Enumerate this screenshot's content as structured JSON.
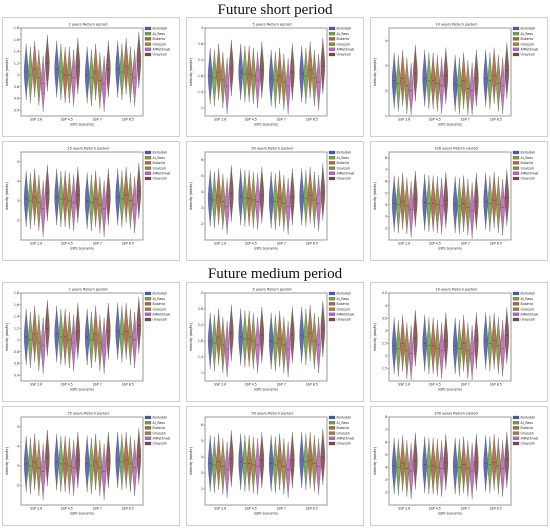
{
  "sections": [
    {
      "title": "Future short period"
    },
    {
      "title": "Future medium period"
    }
  ],
  "chart_defaults": {
    "type": "violin",
    "categories": [
      "SSP 2.6",
      "SSP 4.5",
      "SSP 7",
      "SSP 8.5"
    ],
    "xlabel": "SSPs Scenarios",
    "ylabel": "Intensity (mm/hr)",
    "series_names": [
      "Buriydah",
      "Al_Rass",
      "Bukeria",
      "Unaizah",
      "AlMethnab",
      "Unayzah"
    ],
    "series_colors": [
      "#4e5aa8",
      "#6fa03c",
      "#b06040",
      "#8a8a3a",
      "#c060c0",
      "#7a4a44"
    ]
  },
  "chart_data": [
    {
      "type": "violin",
      "section": 0,
      "title": "2 years Return period",
      "categories": [
        "SSP 2.6",
        "SSP 4.5",
        "SSP 7",
        "SSP 8.5"
      ],
      "xlabel": "SSPs Scenarios",
      "ylabel": "Intensity (mm/hr)",
      "ylim": [
        0.3,
        1.8
      ],
      "yticks": [
        0.4,
        0.6,
        0.8,
        1.0,
        1.2,
        1.4,
        1.6,
        1.8
      ],
      "series": [
        {
          "name": "Buriydah",
          "values": [
            1.05,
            1.1,
            1.0,
            1.1
          ]
        },
        {
          "name": "Al_Rass",
          "values": [
            1.0,
            1.05,
            0.95,
            1.05
          ]
        },
        {
          "name": "Bukeria",
          "values": [
            1.1,
            1.0,
            1.05,
            1.15
          ]
        },
        {
          "name": "Unaizah",
          "values": [
            0.95,
            1.0,
            0.9,
            1.0
          ]
        },
        {
          "name": "AlMethnab",
          "values": [
            0.85,
            0.95,
            0.85,
            0.95
          ]
        },
        {
          "name": "Unayzah",
          "values": [
            1.2,
            1.15,
            1.1,
            1.25
          ]
        }
      ]
    },
    {
      "type": "violin",
      "section": 0,
      "title": "5 years Return period",
      "categories": [
        "SSP 2.6",
        "SSP 4.5",
        "SSP 7",
        "SSP 8.5"
      ],
      "xlabel": "SSPs Scenarios",
      "ylabel": "Intensity (mm/hr)",
      "ylim": [
        0.8,
        3.0
      ],
      "yticks": [
        1.0,
        1.4,
        1.8,
        2.2,
        2.6,
        3.0
      ],
      "series": [
        {
          "name": "Buriydah",
          "values": [
            1.8,
            1.9,
            1.75,
            1.85
          ]
        },
        {
          "name": "Al_Rass",
          "values": [
            1.75,
            1.85,
            1.7,
            1.8
          ]
        },
        {
          "name": "Bukeria",
          "values": [
            1.9,
            1.85,
            1.8,
            1.95
          ]
        },
        {
          "name": "Unaizah",
          "values": [
            1.7,
            1.8,
            1.65,
            1.75
          ]
        },
        {
          "name": "AlMethnab",
          "values": [
            1.55,
            1.7,
            1.55,
            1.65
          ]
        },
        {
          "name": "Unayzah",
          "values": [
            2.0,
            1.95,
            1.9,
            2.05
          ]
        }
      ]
    },
    {
      "type": "violin",
      "section": 0,
      "title": "10 years Return period",
      "categories": [
        "SSP 2.6",
        "SSP 4.5",
        "SSP 7",
        "SSP 8.5"
      ],
      "xlabel": "SSPs Scenarios",
      "ylabel": "Intensity (mm/hr)",
      "ylim": [
        1.0,
        4.5
      ],
      "yticks": [
        1,
        2,
        3,
        4
      ],
      "series": [
        {
          "name": "Buriydah",
          "values": [
            2.4,
            2.5,
            2.3,
            2.5
          ]
        },
        {
          "name": "Al_Rass",
          "values": [
            2.3,
            2.4,
            2.2,
            2.4
          ]
        },
        {
          "name": "Bukeria",
          "values": [
            2.5,
            2.4,
            2.4,
            2.6
          ]
        },
        {
          "name": "Unaizah",
          "values": [
            2.2,
            2.3,
            2.1,
            2.3
          ]
        },
        {
          "name": "AlMethnab",
          "values": [
            2.0,
            2.2,
            2.0,
            2.2
          ]
        },
        {
          "name": "Unayzah",
          "values": [
            2.7,
            2.6,
            2.5,
            2.8
          ]
        }
      ]
    },
    {
      "type": "violin",
      "section": 0,
      "title": "25 years Return period",
      "categories": [
        "SSP 2.6",
        "SSP 4.5",
        "SSP 7",
        "SSP 8.5"
      ],
      "xlabel": "SSPs Scenarios",
      "ylabel": "Intensity (mm/hr)",
      "ylim": [
        1.0,
        5.5
      ],
      "yticks": [
        2,
        3,
        4,
        5
      ],
      "series": [
        {
          "name": "Buriydah",
          "values": [
            3.1,
            3.2,
            3.0,
            3.2
          ]
        },
        {
          "name": "Al_Rass",
          "values": [
            3.0,
            3.1,
            2.9,
            3.1
          ]
        },
        {
          "name": "Bukeria",
          "values": [
            3.2,
            3.1,
            3.1,
            3.3
          ]
        },
        {
          "name": "Unaizah",
          "values": [
            2.9,
            3.0,
            2.8,
            3.0
          ]
        },
        {
          "name": "AlMethnab",
          "values": [
            2.6,
            2.9,
            2.6,
            2.8
          ]
        },
        {
          "name": "Unayzah",
          "values": [
            3.4,
            3.3,
            3.2,
            3.5
          ]
        }
      ]
    },
    {
      "type": "violin",
      "section": 0,
      "title": "50 years Return period",
      "categories": [
        "SSP 2.6",
        "SSP 4.5",
        "SSP 7",
        "SSP 8.5"
      ],
      "xlabel": "SSPs Scenarios",
      "ylabel": "Intensity (mm/hr)",
      "ylim": [
        1.0,
        6.5
      ],
      "yticks": [
        2,
        3,
        4,
        5,
        6
      ],
      "series": [
        {
          "name": "Buriydah",
          "values": [
            3.6,
            3.7,
            3.5,
            3.7
          ]
        },
        {
          "name": "Al_Rass",
          "values": [
            3.5,
            3.6,
            3.4,
            3.6
          ]
        },
        {
          "name": "Bukeria",
          "values": [
            3.7,
            3.6,
            3.6,
            3.8
          ]
        },
        {
          "name": "Unaizah",
          "values": [
            3.4,
            3.5,
            3.3,
            3.5
          ]
        },
        {
          "name": "AlMethnab",
          "values": [
            3.1,
            3.4,
            3.1,
            3.3
          ]
        },
        {
          "name": "Unayzah",
          "values": [
            3.9,
            3.8,
            3.7,
            4.0
          ]
        }
      ]
    },
    {
      "type": "violin",
      "section": 0,
      "title": "100 years Return period",
      "categories": [
        "SSP 2.6",
        "SSP 4.5",
        "SSP 7",
        "SSP 8.5"
      ],
      "xlabel": "SSPs Scenarios",
      "ylabel": "Intensity (mm/hr)",
      "ylim": [
        1.0,
        8.5
      ],
      "yticks": [
        2,
        3,
        4,
        5,
        6,
        7,
        8
      ],
      "series": [
        {
          "name": "Buriydah",
          "values": [
            4.1,
            4.2,
            4.0,
            4.3
          ]
        },
        {
          "name": "Al_Rass",
          "values": [
            4.0,
            4.1,
            3.9,
            4.1
          ]
        },
        {
          "name": "Bukeria",
          "values": [
            4.3,
            4.1,
            4.1,
            4.4
          ]
        },
        {
          "name": "Unaizah",
          "values": [
            3.9,
            4.0,
            3.8,
            4.0
          ]
        },
        {
          "name": "AlMethnab",
          "values": [
            3.6,
            3.9,
            3.5,
            3.8
          ]
        },
        {
          "name": "Unayzah",
          "values": [
            4.5,
            4.4,
            4.3,
            4.6
          ]
        }
      ]
    },
    {
      "type": "violin",
      "section": 1,
      "title": "2 years Return period",
      "categories": [
        "SSP 2.6",
        "SSP 4.5",
        "SSP 7",
        "SSP 8.5"
      ],
      "xlabel": "SSPs Scenarios",
      "ylabel": "Intensity (mm/hr)",
      "ylim": [
        0.3,
        1.8
      ],
      "yticks": [
        0.4,
        0.6,
        0.8,
        1.0,
        1.2,
        1.4,
        1.6,
        1.8
      ],
      "series": [
        {
          "name": "Buriydah",
          "values": [
            1.05,
            1.1,
            1.05,
            1.15
          ]
        },
        {
          "name": "Al_Rass",
          "values": [
            1.0,
            1.05,
            1.0,
            1.1
          ]
        },
        {
          "name": "Bukeria",
          "values": [
            1.1,
            1.05,
            1.1,
            1.15
          ]
        },
        {
          "name": "Unaizah",
          "values": [
            0.95,
            1.0,
            0.95,
            1.05
          ]
        },
        {
          "name": "AlMethnab",
          "values": [
            0.9,
            0.95,
            0.9,
            1.0
          ]
        },
        {
          "name": "Unayzah",
          "values": [
            1.2,
            1.15,
            1.15,
            1.25
          ]
        }
      ]
    },
    {
      "type": "violin",
      "section": 1,
      "title": "5 years Return period",
      "categories": [
        "SSP 2.6",
        "SSP 4.5",
        "SSP 7",
        "SSP 8.5"
      ],
      "xlabel": "SSPs Scenarios",
      "ylabel": "Intensity (mm/hr)",
      "ylim": [
        0.8,
        3.0
      ],
      "yticks": [
        1.0,
        1.4,
        1.8,
        2.2,
        2.6,
        3.0
      ],
      "series": [
        {
          "name": "Buriydah",
          "values": [
            1.8,
            1.9,
            1.8,
            1.95
          ]
        },
        {
          "name": "Al_Rass",
          "values": [
            1.75,
            1.85,
            1.75,
            1.9
          ]
        },
        {
          "name": "Bukeria",
          "values": [
            1.9,
            1.85,
            1.85,
            2.0
          ]
        },
        {
          "name": "Unaizah",
          "values": [
            1.7,
            1.8,
            1.7,
            1.8
          ]
        },
        {
          "name": "AlMethnab",
          "values": [
            1.6,
            1.7,
            1.6,
            1.7
          ]
        },
        {
          "name": "Unayzah",
          "values": [
            2.0,
            1.95,
            1.95,
            2.1
          ]
        }
      ]
    },
    {
      "type": "violin",
      "section": 1,
      "title": "10 years Return period",
      "categories": [
        "SSP 2.6",
        "SSP 4.5",
        "SSP 7",
        "SSP 8.5"
      ],
      "xlabel": "SSPs Scenarios",
      "ylabel": "Intensity (mm/hr)",
      "ylim": [
        1.0,
        4.5
      ],
      "yticks": [
        1.5,
        2.0,
        2.5,
        3.0,
        3.5,
        4.0,
        4.5
      ],
      "series": [
        {
          "name": "Buriydah",
          "values": [
            2.4,
            2.5,
            2.4,
            2.6
          ]
        },
        {
          "name": "Al_Rass",
          "values": [
            2.3,
            2.4,
            2.3,
            2.5
          ]
        },
        {
          "name": "Bukeria",
          "values": [
            2.5,
            2.4,
            2.5,
            2.6
          ]
        },
        {
          "name": "Unaizah",
          "values": [
            2.2,
            2.3,
            2.2,
            2.4
          ]
        },
        {
          "name": "AlMethnab",
          "values": [
            2.1,
            2.2,
            2.1,
            2.3
          ]
        },
        {
          "name": "Unayzah",
          "values": [
            2.7,
            2.6,
            2.6,
            2.8
          ]
        }
      ]
    },
    {
      "type": "violin",
      "section": 1,
      "title": "25 years Return period",
      "categories": [
        "SSP 2.6",
        "SSP 4.5",
        "SSP 7",
        "SSP 8.5"
      ],
      "xlabel": "SSPs Scenarios",
      "ylabel": "Intensity (mm/hr)",
      "ylim": [
        1.0,
        5.5
      ],
      "yticks": [
        2,
        3,
        4,
        5
      ],
      "series": [
        {
          "name": "Buriydah",
          "values": [
            3.1,
            3.2,
            3.1,
            3.3
          ]
        },
        {
          "name": "Al_Rass",
          "values": [
            3.0,
            3.1,
            3.0,
            3.2
          ]
        },
        {
          "name": "Bukeria",
          "values": [
            3.2,
            3.1,
            3.2,
            3.3
          ]
        },
        {
          "name": "Unaizah",
          "values": [
            2.9,
            3.0,
            2.9,
            3.1
          ]
        },
        {
          "name": "AlMethnab",
          "values": [
            2.7,
            2.9,
            2.7,
            2.9
          ]
        },
        {
          "name": "Unayzah",
          "values": [
            3.4,
            3.3,
            3.3,
            3.5
          ]
        }
      ]
    },
    {
      "type": "violin",
      "section": 1,
      "title": "50 years Return period",
      "categories": [
        "SSP 2.6",
        "SSP 4.5",
        "SSP 7",
        "SSP 8.5"
      ],
      "xlabel": "SSPs Scenarios",
      "ylabel": "Intensity (mm/hr)",
      "ylim": [
        1.0,
        6.5
      ],
      "yticks": [
        2,
        3,
        4,
        5,
        6
      ],
      "series": [
        {
          "name": "Buriydah",
          "values": [
            3.6,
            3.7,
            3.6,
            3.8
          ]
        },
        {
          "name": "Al_Rass",
          "values": [
            3.5,
            3.6,
            3.5,
            3.7
          ]
        },
        {
          "name": "Bukeria",
          "values": [
            3.7,
            3.6,
            3.7,
            3.8
          ]
        },
        {
          "name": "Unaizah",
          "values": [
            3.4,
            3.5,
            3.4,
            3.6
          ]
        },
        {
          "name": "AlMethnab",
          "values": [
            3.2,
            3.4,
            3.2,
            3.4
          ]
        },
        {
          "name": "Unayzah",
          "values": [
            3.9,
            3.8,
            3.8,
            4.0
          ]
        }
      ]
    },
    {
      "type": "violin",
      "section": 1,
      "title": "100 years Return period",
      "categories": [
        "SSP 2.6",
        "SSP 4.5",
        "SSP 7",
        "SSP 8.5"
      ],
      "xlabel": "SSPs Scenarios",
      "ylabel": "Intensity (mm/hr)",
      "ylim": [
        1.0,
        8.0
      ],
      "yticks": [
        2,
        3,
        4,
        5,
        6,
        7,
        8
      ],
      "series": [
        {
          "name": "Buriydah",
          "values": [
            4.1,
            4.2,
            4.1,
            4.3
          ]
        },
        {
          "name": "Al_Rass",
          "values": [
            4.0,
            4.1,
            4.0,
            4.2
          ]
        },
        {
          "name": "Bukeria",
          "values": [
            4.3,
            4.1,
            4.2,
            4.4
          ]
        },
        {
          "name": "Unaizah",
          "values": [
            3.9,
            4.0,
            3.9,
            4.1
          ]
        },
        {
          "name": "AlMethnab",
          "values": [
            3.7,
            3.9,
            3.7,
            3.9
          ]
        },
        {
          "name": "Unayzah",
          "values": [
            4.5,
            4.4,
            4.4,
            4.6
          ]
        }
      ]
    }
  ]
}
